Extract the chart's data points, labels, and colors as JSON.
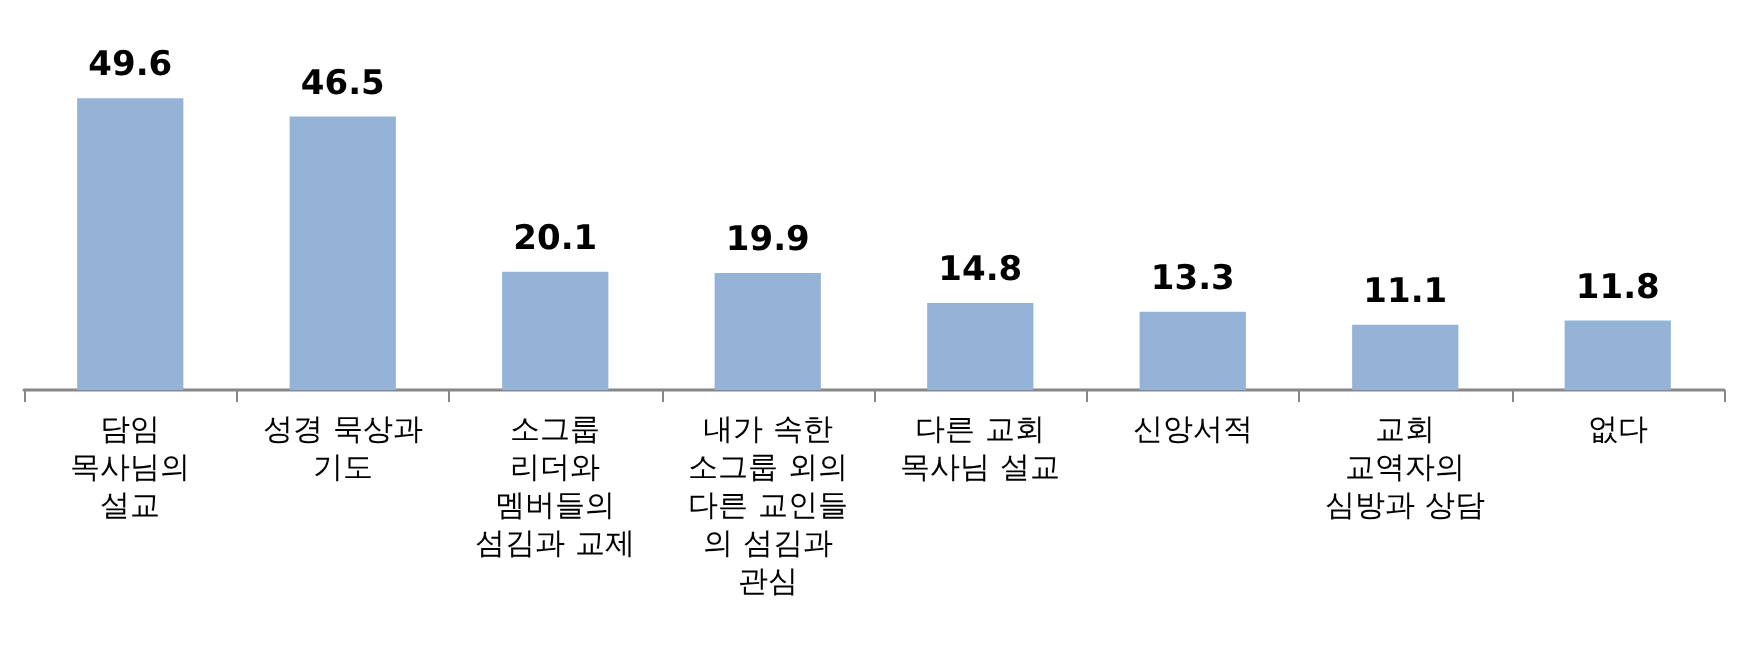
{
  "chart_data": {
    "type": "bar",
    "categories": [
      "담임\n목사님의\n설교",
      "성경 묵상과\n기도",
      "소그룹\n리더와\n멤버들의\n섬김과 교제",
      "내가 속한\n소그룹 외의\n다른 교인들\n의 섬김과\n관심",
      "다른 교회\n목사님 설교",
      "신앙서적",
      "교회\n교역자의\n심방과 상담",
      "없다"
    ],
    "values": [
      49.6,
      46.5,
      20.1,
      19.9,
      14.8,
      13.3,
      11.1,
      11.8
    ],
    "color": "#95b3d7",
    "data_labels": true
  }
}
